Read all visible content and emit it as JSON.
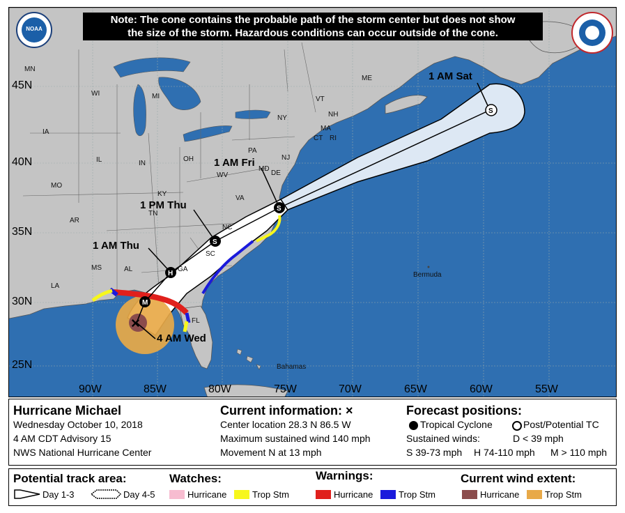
{
  "note": {
    "line1": "Note: The cone contains the probable path of the storm center but does not show",
    "line2": "the size of the storm. Hazardous conditions can occur outside of the cone."
  },
  "latitudes": [
    "45N",
    "40N",
    "35N",
    "30N",
    "25N"
  ],
  "longitudes": [
    "90W",
    "85W",
    "80W",
    "75W",
    "70W",
    "65W",
    "60W",
    "55W"
  ],
  "states": [
    "MN",
    "WI",
    "MI",
    "IA",
    "IL",
    "IN",
    "OH",
    "MO",
    "KY",
    "WV",
    "VA",
    "PA",
    "NY",
    "VT",
    "NH",
    "ME",
    "MA",
    "CT",
    "RI",
    "NJ",
    "DE",
    "MD",
    "TN",
    "NC",
    "SC",
    "AR",
    "MS",
    "AL",
    "GA",
    "LA",
    "FL"
  ],
  "places": {
    "bermuda": "Bermuda",
    "bahamas": "Bahamas"
  },
  "forecast_points": [
    {
      "label": "4 AM Wed",
      "marker": "×",
      "time_offset_h": 0
    },
    {
      "label": "",
      "marker": "M",
      "time_offset_h": 12
    },
    {
      "label": "1 AM Thu",
      "marker": "H",
      "time_offset_h": 21
    },
    {
      "label": "1 PM Thu",
      "marker": "S",
      "time_offset_h": 33
    },
    {
      "label": "1 AM Fri",
      "marker": "S",
      "time_offset_h": 45
    },
    {
      "label": "1 AM Sat",
      "marker": "S",
      "time_offset_h": 69
    }
  ],
  "storm": {
    "name": "Hurricane Michael",
    "date": "Wednesday October 10, 2018",
    "advisory": "4 AM CDT Advisory 15",
    "agency": "NWS National Hurricane Center"
  },
  "current": {
    "title": "Current information:",
    "title_icon": "×",
    "location": "Center location 28.3 N 86.5 W",
    "wind": "Maximum sustained wind 140 mph",
    "movement": "Movement N at 13 mph"
  },
  "forecast": {
    "title": "Forecast positions:",
    "tropical": "Tropical Cyclone",
    "post": "Post/Potential TC",
    "winds_label": "Sustained winds:",
    "d": "D < 39 mph",
    "s": "S 39-73 mph",
    "h": "H 74-110 mph",
    "m": "M > 110 mph"
  },
  "legend": {
    "track_title": "Potential track area:",
    "day13": "Day 1-3",
    "day45": "Day 4-5",
    "watches_title": "Watches:",
    "watch_hurricane": "Hurricane",
    "watch_trop": "Trop Stm",
    "warnings_title": "Warnings:",
    "warn_hurricane": "Hurricane",
    "warn_trop": "Trop Stm",
    "wind_title": "Current wind extent:",
    "wind_hurricane": "Hurricane",
    "wind_trop": "Trop Stm"
  },
  "colors": {
    "ocean": "#2f6fb1",
    "land": "#c4c4c4",
    "hurricane_warning": "#e0201c",
    "trop_warning": "#1a1adc",
    "trop_watch": "#f7f71c",
    "hurricane_watch": "#f7bcd0",
    "hurricane_wind": "#8b4c4c",
    "trop_wind": "#e8a948"
  },
  "icons": {
    "noaa": "noaa-logo",
    "nws": "nws-logo"
  }
}
